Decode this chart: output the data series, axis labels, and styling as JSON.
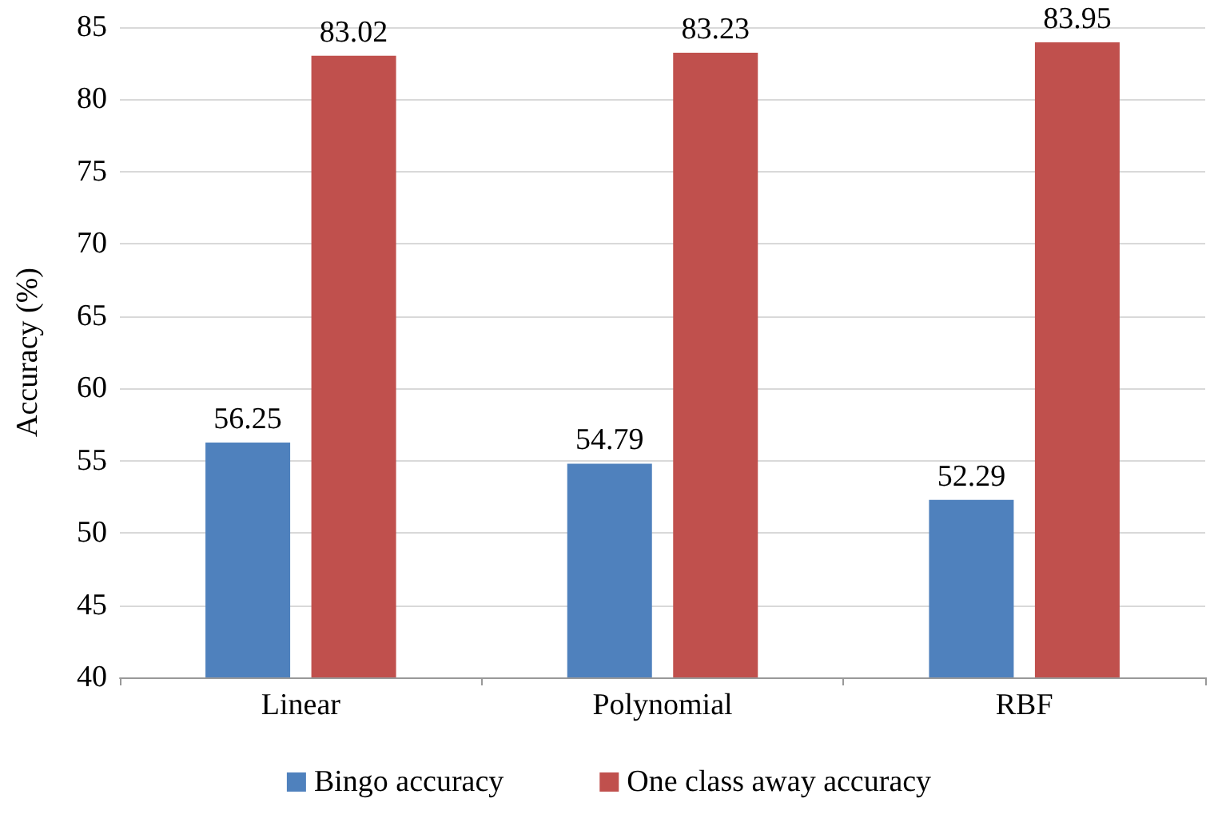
{
  "chart_data": {
    "type": "bar",
    "ylabel": "Accuracy (%)",
    "categories": [
      "Linear",
      "Polynomial",
      "RBF"
    ],
    "series": [
      {
        "name": "Bingo accuracy",
        "color": "#4f81bd",
        "values": [
          56.25,
          54.79,
          52.29
        ]
      },
      {
        "name": "One class away accuracy",
        "color": "#c0504d",
        "values": [
          83.02,
          83.23,
          83.95
        ]
      }
    ],
    "ylim": [
      40,
      85
    ],
    "yticks": [
      40,
      45,
      50,
      55,
      60,
      65,
      70,
      75,
      80,
      85
    ],
    "grid": "y",
    "legend": "bottom",
    "data_labels": true
  }
}
